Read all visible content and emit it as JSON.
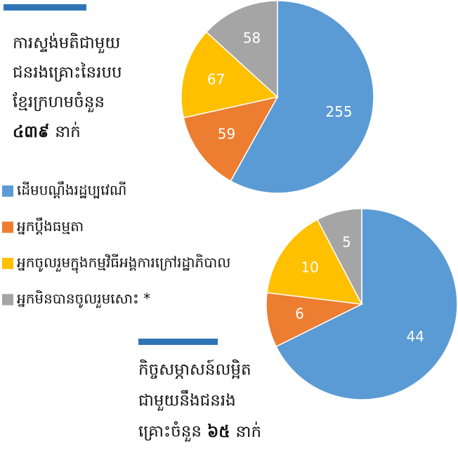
{
  "legend": {
    "categories": [
      "ដើមបណ្តឹងរដ្ឋប្បវេណី",
      "អ្នកប្តឹងធម្មតា",
      "អ្នកចូលរួមក្នុងកម្មវិធីអង្គការក្រៅរដ្ឋាភិបាល",
      "អ្នកមិនបានចូលរួមសោះ *"
    ],
    "colors": [
      "#5b9bd5",
      "#ed7d31",
      "#ffc000",
      "#a5a5a5"
    ]
  },
  "chart_data": [
    {
      "type": "pie",
      "values": [
        255,
        59,
        67,
        58
      ],
      "caption": {
        "lines": [
          "ការស្ទង់មតិជាមួយ",
          "ជនរងគ្រោះនៃរបប",
          "ខ្មែរក្រហមចំនួន"
        ],
        "count": "៤៣៩",
        "unit": "នាក់",
        "count_inline": false
      }
    },
    {
      "type": "pie",
      "values": [
        44,
        6,
        10,
        5
      ],
      "caption": {
        "lines": [
          "កិច្ចសម្ភាសន៍លម្អិត",
          "ជាមួយនឹងជនរង",
          "គ្រោះចំនួន"
        ],
        "count": "៦៥",
        "unit": "នាក់",
        "count_inline": true
      }
    }
  ]
}
